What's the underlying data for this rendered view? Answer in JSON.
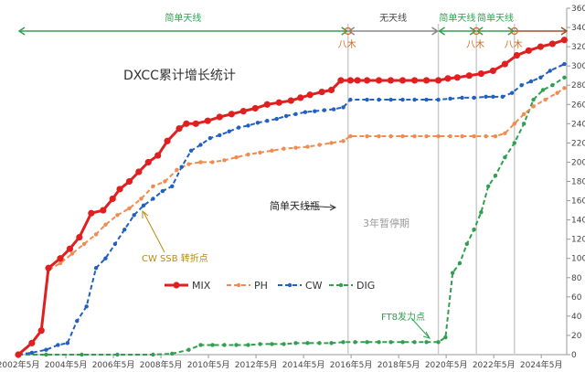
{
  "chart_data": {
    "type": "line",
    "title": "DXCC累计增长统计",
    "x_ticks": [
      "2002年5月",
      "2004年5月",
      "2006年5月",
      "2008年5月",
      "2010年5月",
      "2012年5月",
      "2014年5月",
      "2016年5月",
      "2018年5月",
      "2020年5月",
      "2022年5月",
      "2024年5月"
    ],
    "x_range": [
      2002.33,
      2025.4
    ],
    "ylim": [
      0,
      360
    ],
    "y_ticks": [
      0,
      20,
      40,
      60,
      80,
      100,
      120,
      140,
      160,
      180,
      200,
      220,
      240,
      260,
      280,
      300,
      320,
      340,
      360
    ],
    "grid": false,
    "legend_position": "center-right",
    "series": [
      {
        "name": "MIX",
        "color": "#e02020",
        "x": [
          2002.33,
          2002.9,
          2003.3,
          2003.6,
          2004.1,
          2004.5,
          2004.9,
          2005.4,
          2005.9,
          2006.3,
          2006.6,
          2007.0,
          2007.4,
          2007.8,
          2008.2,
          2008.6,
          2009.1,
          2009.4,
          2009.8,
          2010.3,
          2010.8,
          2011.3,
          2011.8,
          2012.3,
          2012.8,
          2013.3,
          2013.8,
          2014.2,
          2014.6,
          2015.1,
          2015.5,
          2015.9,
          2016.3,
          2016.6,
          2017.0,
          2017.5,
          2018.0,
          2018.5,
          2019.0,
          2019.5,
          2020.0,
          2020.4,
          2020.8,
          2021.3,
          2021.8,
          2022.3,
          2022.8,
          2023.3,
          2023.8,
          2024.3,
          2024.8,
          2025.3
        ],
        "y": [
          0,
          12,
          25,
          90,
          100,
          110,
          122,
          147,
          150,
          162,
          172,
          180,
          190,
          200,
          207,
          222,
          235,
          240,
          240,
          243,
          247,
          250,
          253,
          256,
          260,
          262,
          264,
          267,
          270,
          273,
          275,
          285,
          285,
          285,
          285,
          285,
          285,
          285,
          285,
          285,
          285,
          287,
          288,
          290,
          292,
          295,
          302,
          311,
          316,
          320,
          323,
          327
        ]
      },
      {
        "name": "PH",
        "color": "#f08c50",
        "x": [
          2002.33,
          2002.9,
          2003.3,
          2003.6,
          2004.1,
          2004.6,
          2005.1,
          2005.6,
          2006.0,
          2006.5,
          2007.0,
          2007.5,
          2008.0,
          2008.5,
          2009.0,
          2009.5,
          2010.0,
          2010.5,
          2011.0,
          2011.5,
          2012.0,
          2012.5,
          2013.0,
          2013.5,
          2014.0,
          2014.5,
          2015.0,
          2015.5,
          2016.0,
          2016.3,
          2017.0,
          2017.5,
          2018.0,
          2018.5,
          2019.0,
          2019.5,
          2020.0,
          2020.5,
          2021.0,
          2021.5,
          2022.0,
          2022.4,
          2022.8,
          2023.2,
          2023.6,
          2024.0,
          2024.5,
          2025.0,
          2025.3
        ],
        "y": [
          0,
          12,
          25,
          88,
          95,
          105,
          115,
          125,
          135,
          145,
          152,
          162,
          175,
          180,
          192,
          198,
          200,
          200,
          202,
          205,
          208,
          210,
          212,
          214,
          215,
          216,
          218,
          220,
          222,
          227,
          227,
          227,
          227,
          227,
          227,
          227,
          227,
          227,
          227,
          227,
          227,
          227,
          230,
          240,
          250,
          258,
          265,
          272,
          277
        ]
      },
      {
        "name": "CW",
        "color": "#2060c0",
        "x": [
          2002.33,
          2002.9,
          2003.5,
          2004.0,
          2004.4,
          2004.8,
          2005.2,
          2005.6,
          2006.0,
          2006.4,
          2006.8,
          2007.2,
          2007.6,
          2008.0,
          2008.4,
          2008.8,
          2009.2,
          2009.6,
          2010.0,
          2010.4,
          2010.8,
          2011.2,
          2011.6,
          2012.0,
          2012.4,
          2012.8,
          2013.2,
          2013.6,
          2014.0,
          2014.4,
          2014.8,
          2015.2,
          2015.6,
          2016.0,
          2016.3,
          2017.0,
          2017.5,
          2018.0,
          2018.5,
          2019.0,
          2019.5,
          2020.0,
          2020.5,
          2021.0,
          2021.5,
          2022.0,
          2022.3,
          2022.7,
          2023.1,
          2023.5,
          2023.9,
          2024.3,
          2024.7,
          2025.3
        ],
        "y": [
          0,
          2,
          5,
          10,
          12,
          35,
          50,
          90,
          100,
          115,
          130,
          145,
          155,
          162,
          170,
          175,
          195,
          212,
          218,
          225,
          228,
          232,
          236,
          238,
          241,
          243,
          245,
          248,
          250,
          252,
          253,
          254,
          255,
          257,
          265,
          265,
          265,
          265,
          265,
          265,
          265,
          265,
          266,
          267,
          267,
          268,
          268,
          268,
          272,
          280,
          284,
          288,
          295,
          302
        ]
      },
      {
        "name": "DIG",
        "color": "#30a050",
        "x": [
          2002.33,
          2003.5,
          2005.0,
          2006.5,
          2008.0,
          2008.8,
          2009.5,
          2010.0,
          2010.5,
          2011.0,
          2011.5,
          2012.0,
          2012.5,
          2013.0,
          2013.5,
          2014.0,
          2014.5,
          2015.0,
          2015.5,
          2016.0,
          2016.5,
          2017.0,
          2017.5,
          2018.0,
          2018.5,
          2019.0,
          2019.5,
          2020.0,
          2020.3,
          2020.6,
          2020.9,
          2021.2,
          2021.5,
          2021.8,
          2022.1,
          2022.4,
          2022.8,
          2023.2,
          2023.6,
          2024.0,
          2024.4,
          2024.8,
          2025.3
        ],
        "y": [
          0,
          0,
          0,
          0,
          0,
          1,
          5,
          10,
          10,
          10,
          10,
          10,
          11,
          11,
          11,
          12,
          12,
          12,
          12,
          13,
          13,
          13,
          13,
          13,
          13,
          13,
          13,
          13,
          18,
          85,
          95,
          115,
          130,
          148,
          175,
          186,
          205,
          220,
          240,
          265,
          275,
          280,
          288
        ]
      }
    ],
    "annotations": {
      "chart_title": "DXCC累计增长统计",
      "simple_antenna_bottleneck": "简单天线瓶",
      "three_year_pause": "3年暂停期",
      "cw_ssb_turning_point": "CW SSB 转折点",
      "ft8_takeoff": "FT8发力点"
    },
    "periods": [
      {
        "label": "简单天线",
        "from": 2002.33,
        "to": 2016.2
      },
      {
        "label": "无天线",
        "from": 2016.2,
        "to": 2020.0
      },
      {
        "label": "简单天线",
        "from": 2020.0,
        "to": 2021.6
      },
      {
        "label": "简单天线",
        "from": 2021.6,
        "to": 2023.2
      }
    ],
    "period_markers": [
      {
        "label": "八木",
        "at": 2016.2
      },
      {
        "label": "八木",
        "at": 2021.6
      },
      {
        "label": "八木",
        "at": 2023.2
      }
    ],
    "legend": [
      "MIX",
      "PH",
      "CW",
      "DIG"
    ]
  }
}
